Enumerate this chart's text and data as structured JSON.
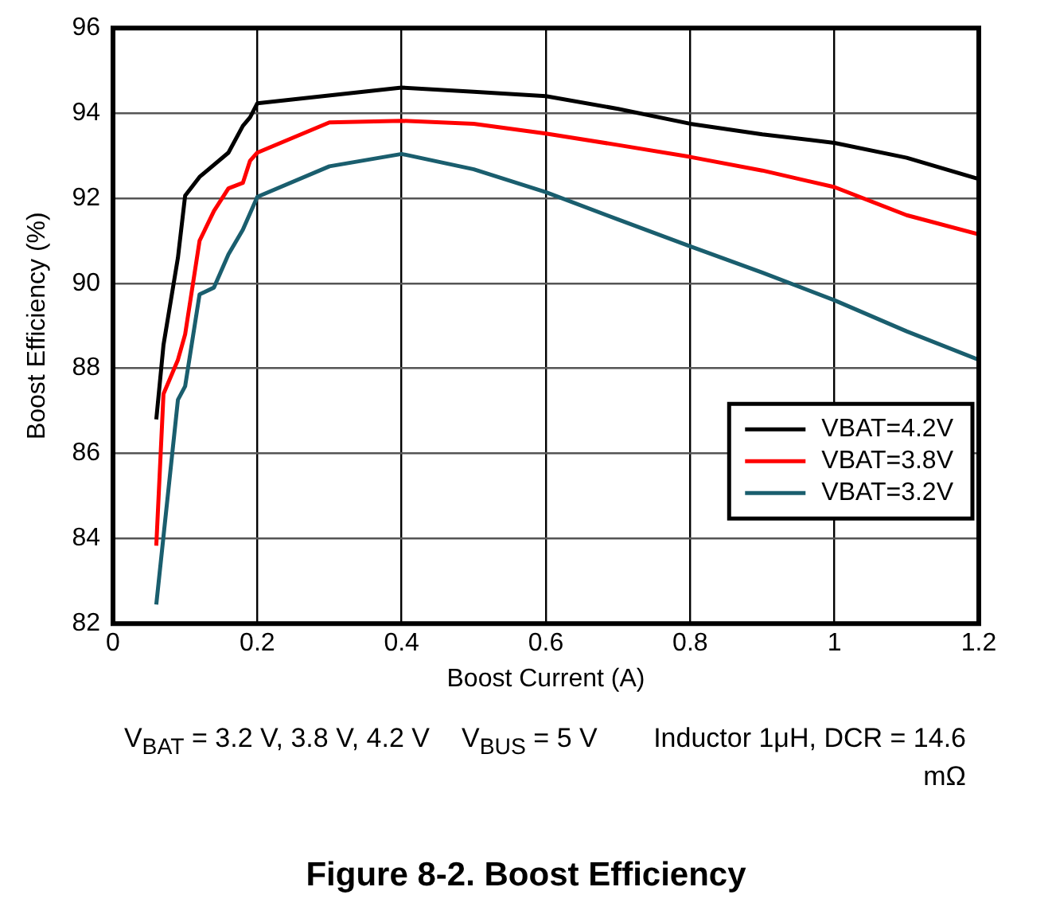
{
  "chart_data": {
    "type": "line",
    "title": "Figure 8-2. Boost Efficiency",
    "xlabel": "Boost Current (A)",
    "ylabel": "Boost Efficiency (%)",
    "xlim": [
      0,
      1.2
    ],
    "xticks": [
      0,
      0.2,
      0.4,
      0.6,
      0.8,
      1,
      1.2
    ],
    "ylim": [
      82,
      96
    ],
    "yticks": [
      82,
      84,
      86,
      88,
      90,
      92,
      94,
      96
    ],
    "grid": true,
    "legend": "bottom right",
    "marker": "none",
    "line_style": "solid",
    "annotations": [
      "V$_{BAT}$ = 3.2 V, 3.8 V, 4.2 V",
      "V$_{BUS}$ = 5 V",
      "Inductor 1μH, DCR = 14.6 mΩ"
    ],
    "series": [
      {
        "name": "VBAT=4.2V",
        "color": "#000000",
        "x": [
          0.06,
          0.07,
          0.09,
          0.1,
          0.12,
          0.16,
          0.18,
          0.19,
          0.2,
          0.4,
          0.5,
          0.6,
          0.7,
          0.8,
          0.9,
          1,
          1.1,
          1.2
        ],
        "values": [
          86.8,
          88.55,
          90.6,
          92.06,
          92.5,
          93.07,
          93.7,
          93.9,
          94.23,
          94.6,
          94.5,
          94.4,
          94.1,
          93.75,
          93.5,
          93.3,
          92.95,
          92.45
        ]
      },
      {
        "name": "VBAT=3.8V",
        "color": "#ff0000",
        "x": [
          0.06,
          0.07,
          0.09,
          0.1,
          0.12,
          0.14,
          0.16,
          0.18,
          0.19,
          0.2,
          0.3,
          0.4,
          0.5,
          0.6,
          0.7,
          0.8,
          0.9,
          1,
          1.1,
          1.2
        ],
        "values": [
          83.83,
          87.4,
          88.2,
          88.8,
          91.0,
          91.7,
          92.23,
          92.36,
          92.88,
          93.07,
          93.78,
          93.82,
          93.75,
          93.52,
          93.25,
          92.97,
          92.65,
          92.26,
          91.6,
          91.15
        ]
      },
      {
        "name": "VBAT=3.2V",
        "color": "#1a5e6e",
        "x": [
          0.06,
          0.09,
          0.1,
          0.12,
          0.14,
          0.16,
          0.18,
          0.2,
          0.3,
          0.4,
          0.5,
          0.6,
          0.7,
          0.8,
          0.9,
          1,
          1.1,
          1.2
        ],
        "values": [
          82.45,
          87.26,
          87.58,
          89.74,
          89.9,
          90.68,
          91.26,
          92.03,
          92.75,
          93.04,
          92.68,
          92.14,
          91.5,
          90.87,
          90.25,
          89.6,
          88.87,
          88.2
        ]
      }
    ]
  }
}
